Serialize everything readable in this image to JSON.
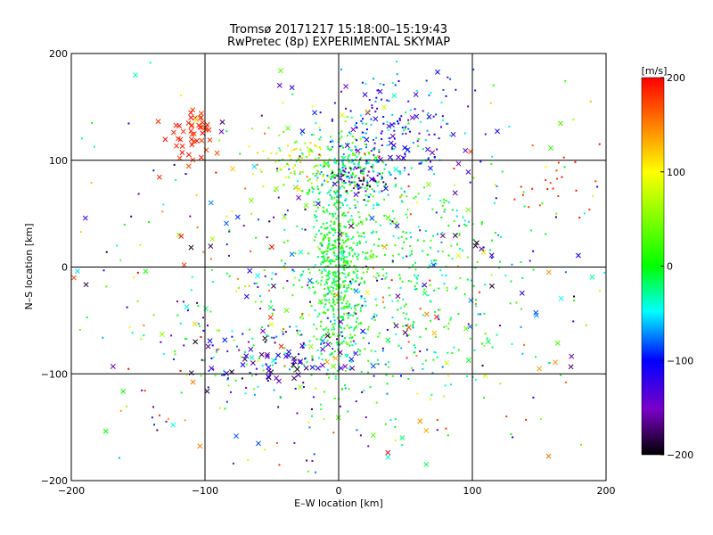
{
  "chart_data": {
    "type": "scatter",
    "title": "Tromsø 20171217 15:18:00–15:19:43",
    "subtitle": "RwPretec (8p) EXPERIMENTAL SKYMAP",
    "xlabel": "E–W location [km]",
    "ylabel": "N–S location [km]",
    "xlim": [
      -200,
      200
    ],
    "ylim": [
      -200,
      200
    ],
    "xticks": [
      -200,
      -100,
      0,
      100,
      200
    ],
    "yticks": [
      -200,
      -100,
      0,
      100,
      200
    ],
    "grid": true,
    "colorbar": {
      "label": "[m/s]",
      "min": -200,
      "max": 200,
      "ticks": [
        200,
        100,
        0,
        -100,
        -200
      ]
    },
    "clusters": [
      {
        "marker": "dot",
        "cx": 0,
        "cy": 0,
        "sx": 10,
        "sy": 45,
        "n": 520,
        "vmin": -40,
        "vmax": 40
      },
      {
        "marker": "dot",
        "cx": 5,
        "cy": 92,
        "sx": 20,
        "sy": 18,
        "n": 220,
        "vmin": -80,
        "vmax": 40
      },
      {
        "marker": "dot",
        "cx": 15,
        "cy": 82,
        "sx": 10,
        "sy": 6,
        "n": 60,
        "vmin": -200,
        "vmax": -110
      },
      {
        "marker": "dot",
        "cx": -25,
        "cy": 100,
        "sx": 18,
        "sy": 12,
        "n": 80,
        "vmin": 20,
        "vmax": 130
      },
      {
        "marker": "dot",
        "cx": 40,
        "cy": 130,
        "sx": 25,
        "sy": 25,
        "n": 150,
        "vmin": -160,
        "vmax": -40
      },
      {
        "marker": "dot",
        "cx": 50,
        "cy": 30,
        "sx": 45,
        "sy": 45,
        "n": 250,
        "vmin": -60,
        "vmax": 40
      },
      {
        "marker": "dot",
        "cx": 50,
        "cy": -60,
        "sx": 45,
        "sy": 45,
        "n": 180,
        "vmin": -80,
        "vmax": 40
      },
      {
        "marker": "dot",
        "cx": -50,
        "cy": -70,
        "sx": 45,
        "sy": 40,
        "n": 200,
        "vmin": -180,
        "vmax": 60
      },
      {
        "marker": "dot",
        "cx": 0,
        "cy": 0,
        "sx": 110,
        "sy": 110,
        "n": 350,
        "vmin": -200,
        "vmax": 200
      },
      {
        "marker": "dot",
        "cx": 165,
        "cy": 75,
        "sx": 15,
        "sy": 15,
        "n": 20,
        "vmin": 170,
        "vmax": 200
      },
      {
        "marker": "cross",
        "cx": -108,
        "cy": 125,
        "sx": 10,
        "sy": 12,
        "n": 45,
        "vmin": 170,
        "vmax": 200
      },
      {
        "marker": "cross",
        "cx": -50,
        "cy": -88,
        "sx": 30,
        "sy": 12,
        "n": 50,
        "vmin": -200,
        "vmax": -90
      },
      {
        "marker": "cross",
        "cx": 40,
        "cy": 130,
        "sx": 25,
        "sy": 25,
        "n": 35,
        "vmin": -160,
        "vmax": -90
      },
      {
        "marker": "cross",
        "cx": 0,
        "cy": 0,
        "sx": 115,
        "sy": 110,
        "n": 170,
        "vmin": -200,
        "vmax": 200
      }
    ]
  }
}
